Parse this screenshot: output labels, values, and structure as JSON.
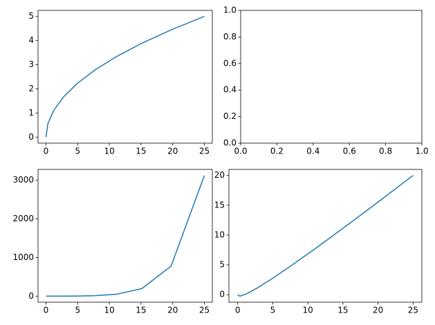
{
  "chart_data": [
    {
      "type": "line",
      "color": "#1f77b4",
      "x": [
        0,
        0.309,
        1.235,
        2.778,
        4.938,
        7.716,
        11.111,
        15.123,
        19.753,
        25
      ],
      "values": [
        0,
        0.556,
        1.111,
        1.667,
        2.222,
        2.778,
        3.333,
        3.889,
        4.444,
        5
      ],
      "xlim": [
        -1.25,
        26.25
      ],
      "ylim": [
        -0.25,
        5.25
      ],
      "xticks": [
        0,
        5,
        10,
        15,
        20,
        25
      ],
      "yticks": [
        0,
        1,
        2,
        3,
        4,
        5
      ]
    },
    {
      "type": "line",
      "xlim": [
        0,
        1
      ],
      "ylim": [
        0,
        1
      ],
      "xticks": [
        {
          "value": 0,
          "label": "0.0"
        },
        {
          "value": 0.2,
          "label": "0.2"
        },
        {
          "value": 0.4,
          "label": "0.4"
        },
        {
          "value": 0.6,
          "label": "0.6"
        },
        {
          "value": 0.8,
          "label": "0.8"
        },
        {
          "value": 1,
          "label": "1.0"
        }
      ],
      "yticks": [
        {
          "value": 0,
          "label": "0.0"
        },
        {
          "value": 0.2,
          "label": "0.2"
        },
        {
          "value": 0.4,
          "label": "0.4"
        },
        {
          "value": 0.6,
          "label": "0.6"
        },
        {
          "value": 0.8,
          "label": "0.8"
        },
        {
          "value": 1,
          "label": "1.0"
        }
      ]
    },
    {
      "type": "line",
      "color": "#1f77b4",
      "x": [
        0,
        0.309,
        1.235,
        2.778,
        4.938,
        7.716,
        11.111,
        15.123,
        19.753,
        25
      ],
      "values": [
        0,
        0,
        0,
        1,
        3,
        12,
        49,
        195,
        781,
        3125
      ],
      "xlim": [
        -1.25,
        26.25
      ],
      "ylim": [
        -156,
        3281
      ],
      "xticks": [
        0,
        5,
        10,
        15,
        20,
        25
      ],
      "yticks": [
        0,
        1000,
        2000,
        3000
      ]
    },
    {
      "type": "line",
      "color": "#1f77b4",
      "x": [
        0,
        0.309,
        1.235,
        2.778,
        4.938,
        7.716,
        11.111,
        15.123,
        19.753,
        25
      ],
      "values": [
        0,
        -0.247,
        0.123,
        1.111,
        2.716,
        4.938,
        7.778,
        11.235,
        15.309,
        20
      ],
      "xlim": [
        -1.25,
        26.25
      ],
      "ylim": [
        -1.26,
        21.01
      ],
      "xticks": [
        0,
        5,
        10,
        15,
        20,
        25
      ],
      "yticks": [
        0,
        5,
        10,
        15,
        20
      ]
    }
  ]
}
